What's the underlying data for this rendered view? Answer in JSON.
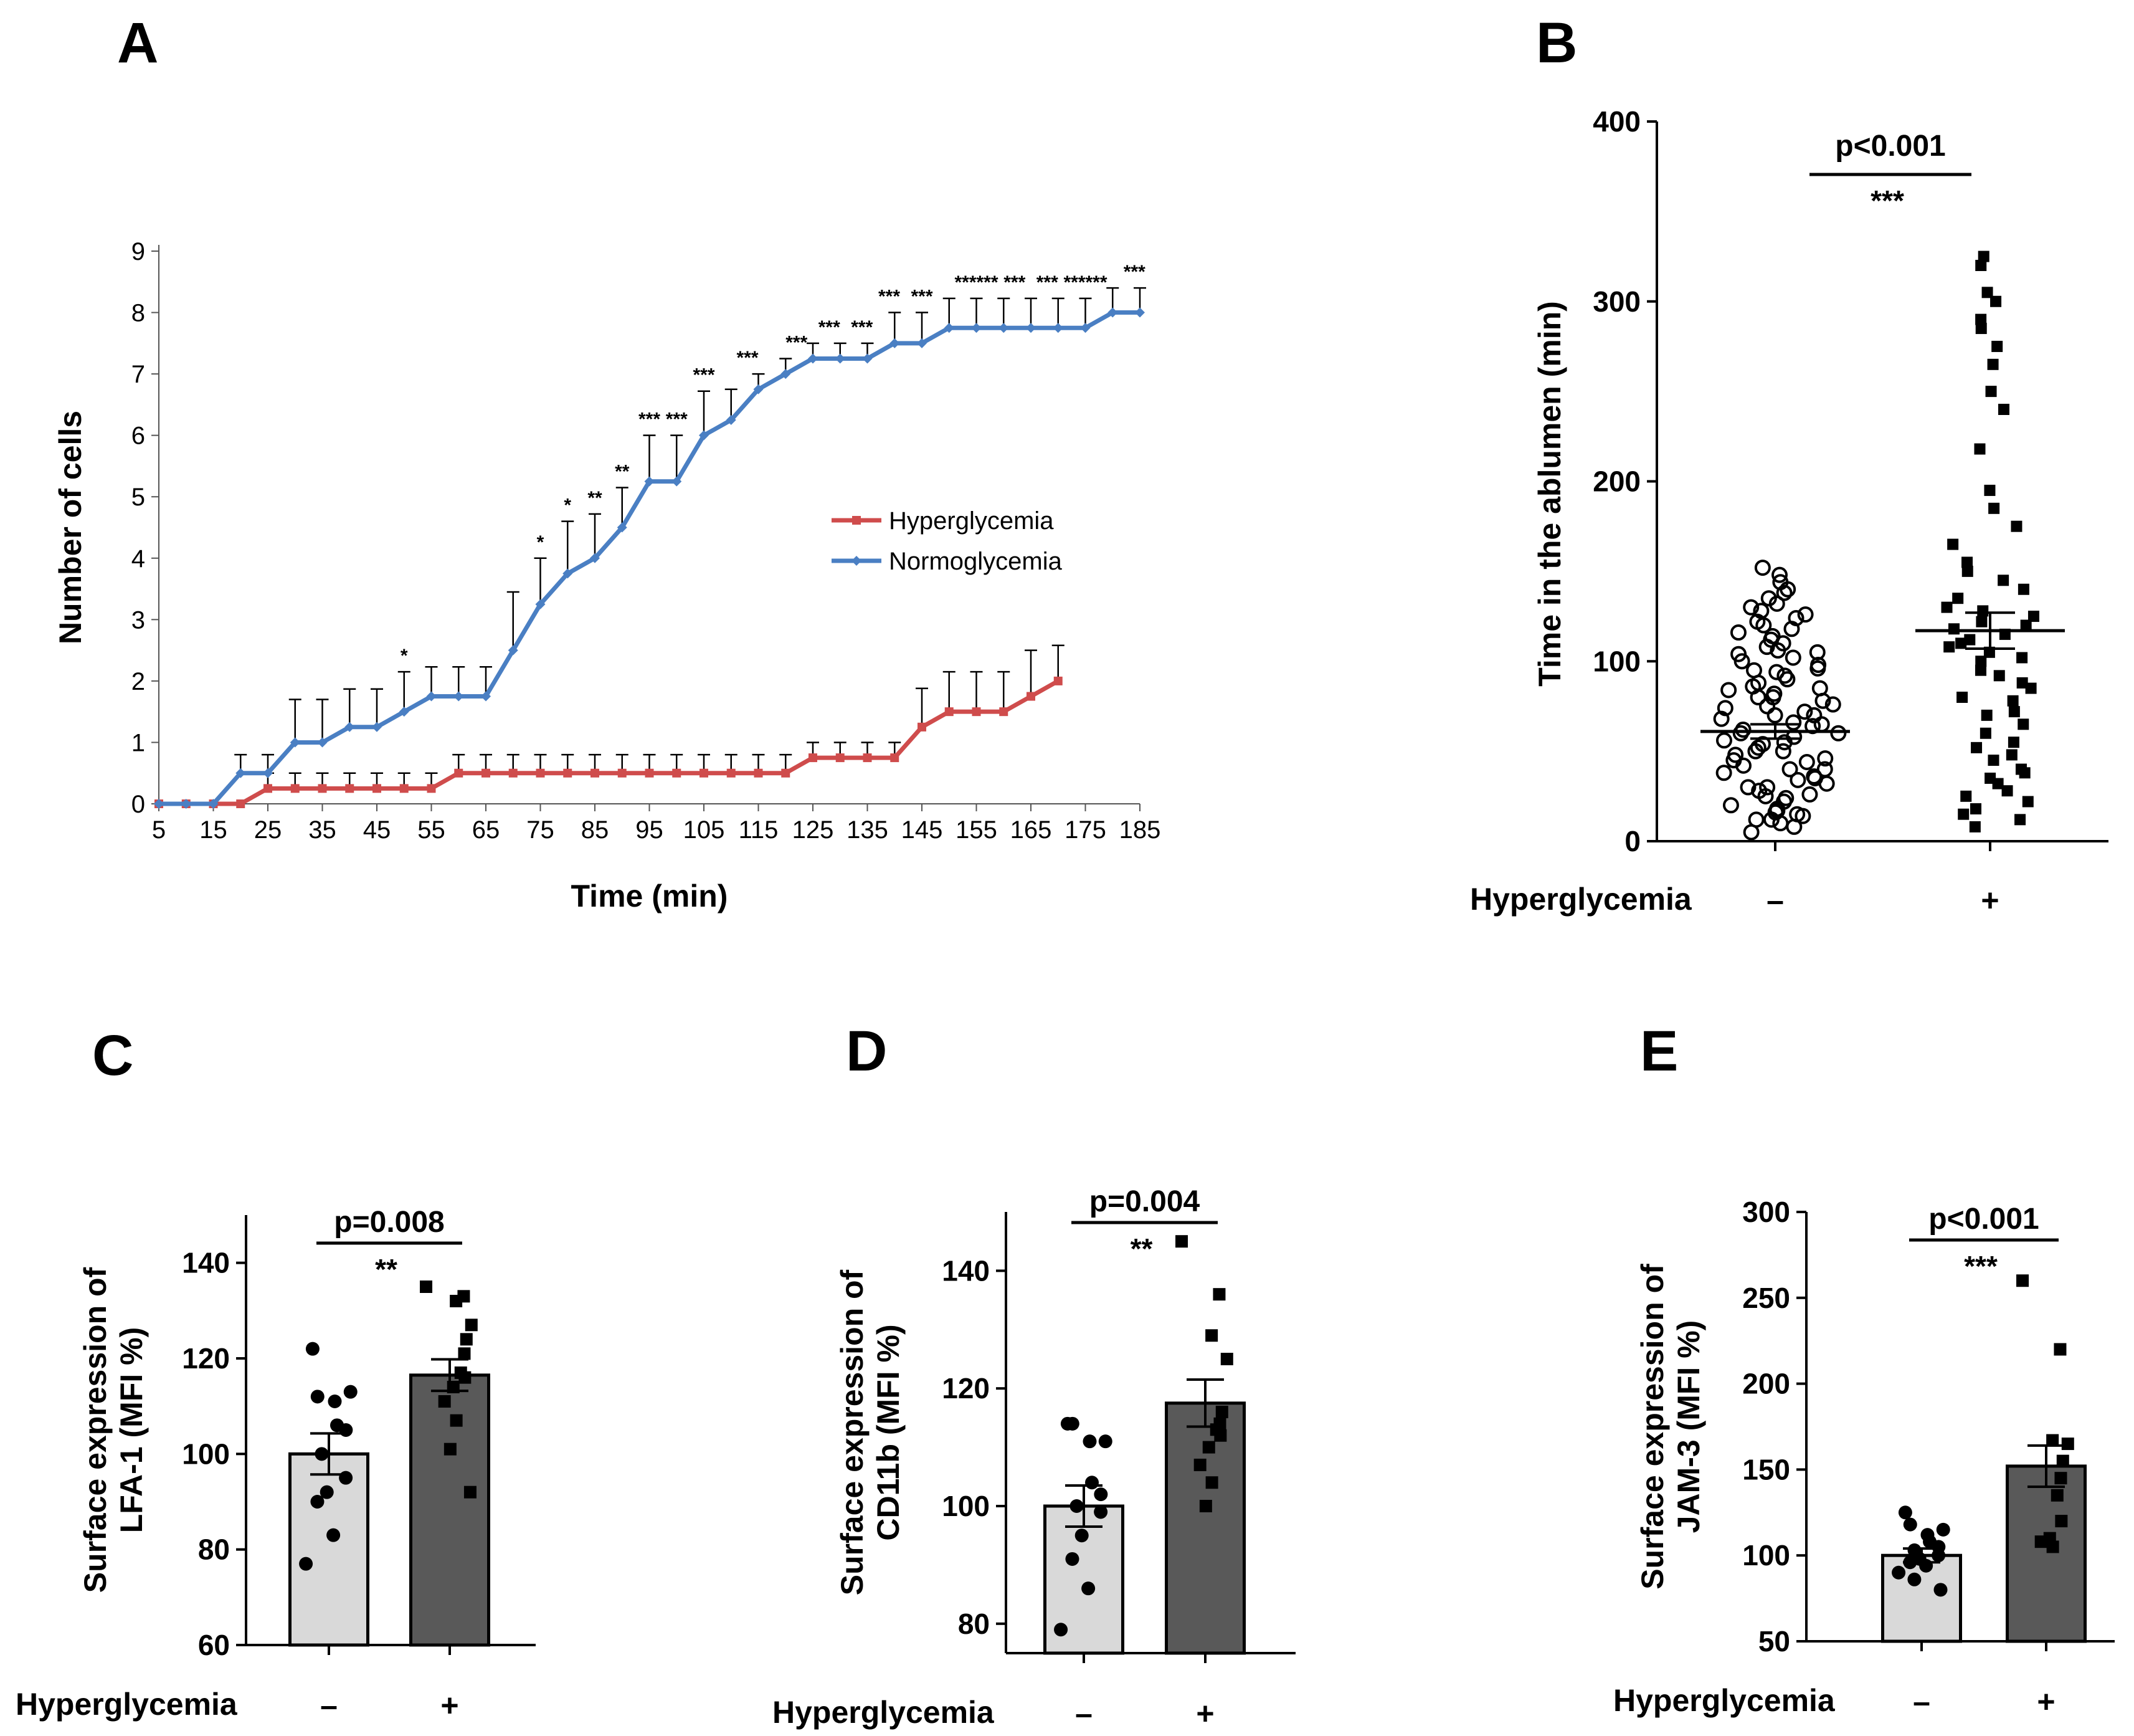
{
  "colors": {
    "normoglycemia": "#4a7fc3",
    "hyperglycemia": "#cf4c4c",
    "bar_minus": "#d9d9d9",
    "bar_plus": "#595959"
  },
  "chart_data": [
    {
      "panel": "A",
      "type": "line",
      "title": "",
      "xlabel": "Time (min)",
      "ylabel": "Number of cells",
      "xlim": [
        5,
        185
      ],
      "ylim": [
        0,
        9
      ],
      "x_ticks": [
        5,
        15,
        25,
        35,
        45,
        55,
        65,
        75,
        85,
        95,
        105,
        115,
        125,
        135,
        145,
        155,
        165,
        175,
        185
      ],
      "y_ticks": [
        0,
        1,
        2,
        3,
        4,
        5,
        6,
        7,
        8,
        9
      ],
      "legend": [
        "Hyperglycemia",
        "Normoglycemia"
      ],
      "series": [
        {
          "name": "Hyperglycemia",
          "x": [
            5,
            10,
            15,
            20,
            25,
            30,
            35,
            40,
            45,
            50,
            55,
            60,
            65,
            70,
            75,
            80,
            85,
            90,
            95,
            100,
            105,
            110,
            115,
            120,
            125,
            130,
            135,
            140,
            145,
            150,
            155,
            160,
            165,
            170
          ],
          "values": [
            0,
            0,
            0,
            0,
            0.25,
            0.25,
            0.25,
            0.25,
            0.25,
            0.25,
            0.25,
            0.5,
            0.5,
            0.5,
            0.5,
            0.5,
            0.5,
            0.5,
            0.5,
            0.5,
            0.5,
            0.5,
            0.5,
            0.5,
            0.75,
            0.75,
            0.75,
            0.75,
            1.25,
            1.5,
            1.5,
            1.5,
            1.75,
            2
          ],
          "error": [
            0,
            0,
            0,
            0,
            0.25,
            0.25,
            0.25,
            0.25,
            0.25,
            0.25,
            0.25,
            0.3,
            0.3,
            0.3,
            0.3,
            0.3,
            0.3,
            0.3,
            0.3,
            0.3,
            0.3,
            0.3,
            0.3,
            0.3,
            0.25,
            0.25,
            0.25,
            0.25,
            0.63,
            0.65,
            0.65,
            0.65,
            0.75,
            0.58
          ]
        },
        {
          "name": "Normoglycemia",
          "x": [
            5,
            10,
            15,
            20,
            25,
            30,
            35,
            40,
            45,
            50,
            55,
            60,
            65,
            70,
            75,
            80,
            85,
            90,
            95,
            100,
            105,
            110,
            115,
            120,
            125,
            130,
            135,
            140,
            145,
            150,
            155,
            160,
            165,
            170,
            175,
            180,
            185
          ],
          "values": [
            0,
            0,
            0,
            0.5,
            0.5,
            1,
            1,
            1.25,
            1.25,
            1.5,
            1.75,
            1.75,
            1.75,
            2.5,
            3.25,
            3.75,
            4,
            4.5,
            5.25,
            5.25,
            6,
            6.25,
            6.75,
            7,
            7.25,
            7.25,
            7.25,
            7.5,
            7.5,
            7.75,
            7.75,
            7.75,
            7.75,
            7.75,
            7.75,
            8,
            8
          ],
          "error": [
            0,
            0,
            0,
            0.3,
            0.3,
            0.7,
            0.7,
            0.62,
            0.62,
            0.65,
            0.48,
            0.48,
            0.48,
            0.95,
            0.75,
            0.85,
            0.72,
            0.65,
            0.75,
            0.75,
            0.72,
            0.5,
            0.25,
            0.25,
            0.25,
            0.25,
            0.25,
            0.5,
            0.5,
            0.48,
            0.48,
            0.48,
            0.48,
            0.48,
            0.48,
            0.4,
            0.4
          ]
        }
      ],
      "significance": [
        {
          "x": 50,
          "label": "*"
        },
        {
          "x": 75,
          "label": "*"
        },
        {
          "x": 80,
          "label": "*"
        },
        {
          "x": 85,
          "label": "**"
        },
        {
          "x": 90,
          "label": "**"
        },
        {
          "x": 95,
          "label": "***"
        },
        {
          "x": 100,
          "label": "***"
        },
        {
          "x": 105,
          "label": "***"
        },
        {
          "x": 113,
          "label": "***"
        },
        {
          "x": 122,
          "label": "***"
        },
        {
          "x": 128,
          "label": "***"
        },
        {
          "x": 134,
          "label": "***"
        },
        {
          "x": 139,
          "label": "***"
        },
        {
          "x": 145,
          "label": "***"
        },
        {
          "x": 153,
          "label": "***"
        },
        {
          "x": 157,
          "label": "***"
        },
        {
          "x": 162,
          "label": "***"
        },
        {
          "x": 168,
          "label": "***"
        },
        {
          "x": 173,
          "label": "***"
        },
        {
          "x": 177,
          "label": "***"
        },
        {
          "x": 184,
          "label": "***"
        }
      ]
    },
    {
      "panel": "B",
      "type": "scatter",
      "title": "",
      "xlabel": "Hyperglycemia",
      "ylabel": "Time in the ablumen (min)",
      "ylim": [
        0,
        400
      ],
      "y_ticks": [
        0,
        100,
        200,
        300,
        400
      ],
      "groups": [
        "–",
        "+"
      ],
      "p_value": "p<0.001",
      "stars": "***",
      "means": [
        61,
        117
      ],
      "sem": [
        4,
        10
      ],
      "points": [
        [
          5,
          8,
          10,
          12,
          12,
          14,
          15,
          16,
          17,
          18,
          20,
          22,
          24,
          25,
          26,
          28,
          30,
          30,
          32,
          34,
          35,
          36,
          38,
          40,
          40,
          42,
          44,
          45,
          46,
          48,
          50,
          50,
          52,
          54,
          55,
          56,
          58,
          60,
          60,
          62,
          64,
          65,
          66,
          68,
          70,
          70,
          72,
          74,
          75,
          76,
          78,
          80,
          80,
          82,
          84,
          85,
          86,
          88,
          90,
          92,
          94,
          95,
          96,
          98,
          100,
          102,
          104,
          105,
          106,
          108,
          110,
          112,
          114,
          116,
          118,
          120,
          122,
          124,
          126,
          128,
          130,
          132,
          135,
          138,
          140,
          144,
          148,
          152
        ],
        [
          8,
          12,
          15,
          18,
          22,
          25,
          28,
          32,
          35,
          38,
          40,
          45,
          48,
          52,
          55,
          60,
          65,
          70,
          72,
          78,
          80,
          85,
          88,
          92,
          95,
          100,
          102,
          105,
          108,
          110,
          112,
          115,
          118,
          120,
          122,
          125,
          128,
          130,
          135,
          140,
          145,
          150,
          155,
          165,
          175,
          185,
          195,
          218,
          240,
          250,
          265,
          275,
          285,
          290,
          300,
          305,
          320,
          325
        ]
      ]
    },
    {
      "panel": "C",
      "type": "bar",
      "title": "",
      "xlabel": "Hyperglycemia",
      "ylabel": "Surface expression of LFA-1 (MFI %)",
      "ylabel_lines": [
        "Surface expression of",
        "LFA-1 (MFI %)"
      ],
      "ylim": [
        60,
        150
      ],
      "y_ticks": [
        60,
        80,
        100,
        120,
        140
      ],
      "categories": [
        "–",
        "+"
      ],
      "values": [
        100,
        116.5
      ],
      "sem": [
        4.3,
        3.3
      ],
      "p_value": "p=0.008",
      "stars": "**",
      "points": [
        [
          122,
          112,
          113,
          111,
          106,
          105,
          100,
          95,
          92,
          90,
          83,
          77
        ],
        [
          135,
          133,
          132,
          127,
          124,
          121,
          117,
          116,
          114,
          111,
          107,
          101,
          92
        ]
      ]
    },
    {
      "panel": "D",
      "type": "bar",
      "title": "",
      "xlabel": "Hyperglycemia",
      "ylabel": "Surface expression of CD11b (MFI %)",
      "ylabel_lines": [
        "Surface expression of",
        "CD11b (MFI %)"
      ],
      "ylim": [
        75,
        150
      ],
      "y_ticks": [
        80,
        100,
        120,
        140
      ],
      "categories": [
        "–",
        "+"
      ],
      "values": [
        100,
        117.5
      ],
      "sem": [
        3.5,
        4
      ],
      "p_value": "p=0.004",
      "stars": "**",
      "points": [
        [
          114,
          114,
          111,
          111,
          104,
          102,
          100,
          99,
          95,
          91,
          86,
          79
        ],
        [
          145,
          136,
          129,
          125,
          116,
          114,
          113,
          112,
          110,
          107,
          104,
          100
        ]
      ]
    },
    {
      "panel": "E",
      "type": "bar",
      "title": "",
      "xlabel": "Hyperglycemia",
      "ylabel": "Surface expression of JAM-3 (MFI %)",
      "ylabel_lines": [
        "Surface expression of",
        "JAM-3 (MFI %)"
      ],
      "ylim": [
        50,
        300
      ],
      "y_ticks": [
        50,
        100,
        150,
        200,
        250,
        300
      ],
      "categories": [
        "–",
        "+"
      ],
      "values": [
        100,
        152
      ],
      "sem": [
        4,
        12
      ],
      "p_value": "p<0.001",
      "stars": "***",
      "points": [
        [
          125,
          118,
          115,
          112,
          108,
          105,
          103,
          100,
          98,
          96,
          94,
          90,
          86,
          80
        ],
        [
          260,
          220,
          167,
          165,
          155,
          145,
          135,
          120,
          110,
          108,
          105
        ]
      ]
    }
  ],
  "panels": {
    "A": {
      "letter": "A"
    },
    "B": {
      "letter": "B"
    },
    "C": {
      "letter": "C"
    },
    "D": {
      "letter": "D"
    },
    "E": {
      "letter": "E"
    }
  }
}
